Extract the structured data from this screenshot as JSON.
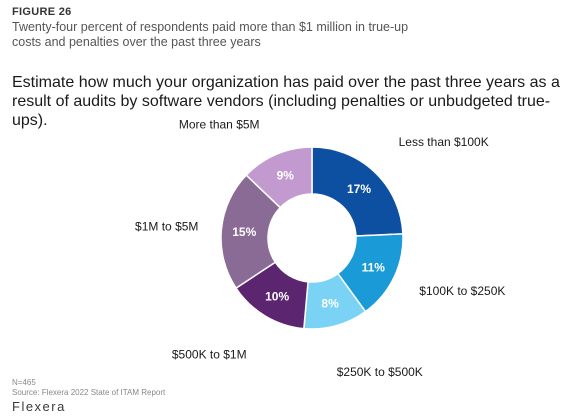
{
  "figure": {
    "label": "FIGURE 26",
    "caption": "Twenty-four percent of respondents paid more than $1 million in true-up costs and penalties over the past three years"
  },
  "question": "Estimate how much your organization has paid over the past three years as a result of audits by software vendors (including penalties or unbudgeted true-ups).",
  "footer": {
    "n": "N=465",
    "source": "Source: Flexera 2022 State of ITAM Report",
    "logo": "Flexera"
  },
  "chart_data": {
    "type": "pie",
    "donut": true,
    "title": "",
    "categories": [
      "Less than $100K",
      "$100K to $250K",
      "$250K to $500K",
      "$500K to $1M",
      "$1M to $5M",
      "More than $5M"
    ],
    "values": [
      17,
      11,
      8,
      10,
      15,
      9
    ],
    "value_labels": [
      "17%",
      "11%",
      "8%",
      "10%",
      "15%",
      "9%"
    ],
    "colors": [
      "#0d4fa0",
      "#1a9ad6",
      "#7ad3f5",
      "#5c2570",
      "#8a6b95",
      "#c29ad0"
    ],
    "start_angle_deg": 0,
    "direction": "clockwise",
    "legend": "none"
  }
}
